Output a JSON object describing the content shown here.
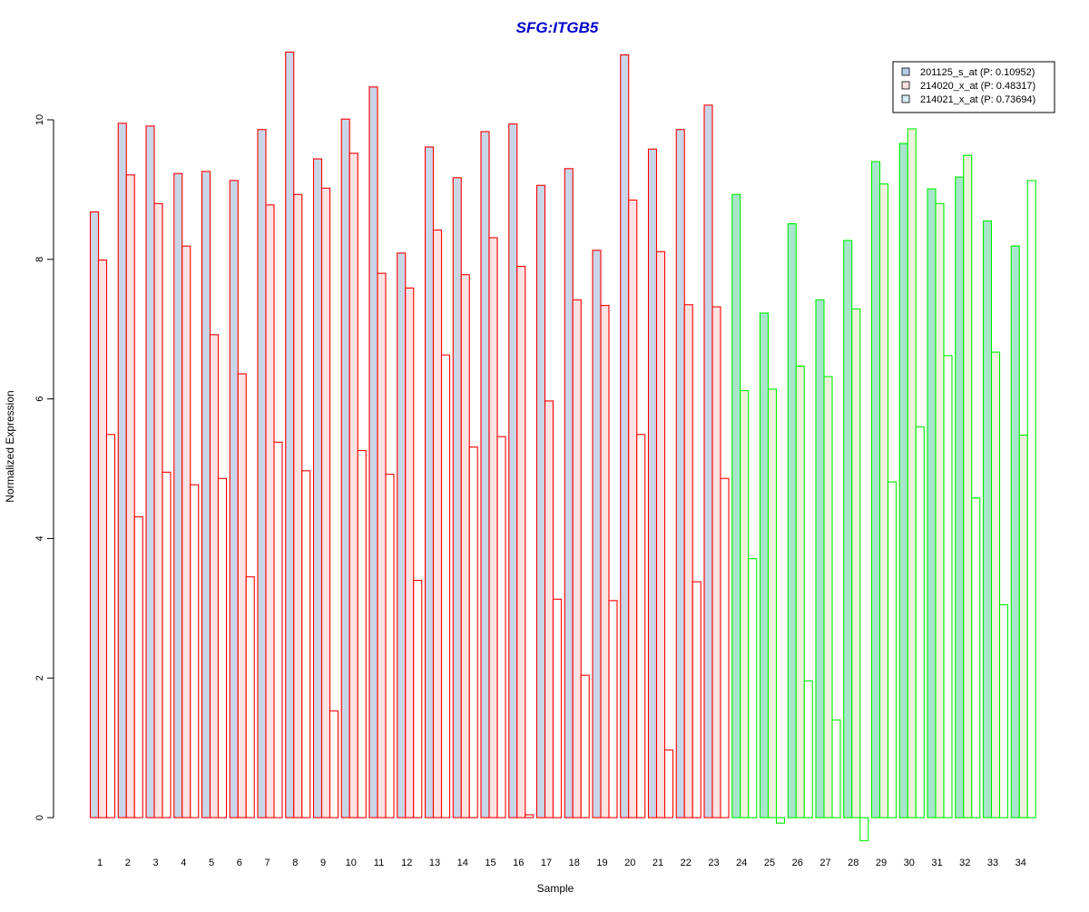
{
  "chart_data": {
    "type": "bar",
    "title": "SFG:ITGB5",
    "xlabel": "Sample",
    "ylabel": "Normalized Expression",
    "ylim": [
      -0.35,
      11.1
    ],
    "y_ticks": [
      0,
      2,
      4,
      6,
      8,
      10
    ],
    "grid": false,
    "legend_position": "top-right",
    "categories": [
      "1",
      "2",
      "3",
      "4",
      "5",
      "6",
      "7",
      "8",
      "9",
      "10",
      "11",
      "12",
      "13",
      "14",
      "15",
      "16",
      "17",
      "18",
      "19",
      "20",
      "21",
      "22",
      "23",
      "24",
      "25",
      "26",
      "27",
      "28",
      "29",
      "30",
      "31",
      "32",
      "33",
      "34"
    ],
    "group_a_count": 23,
    "colors": {
      "title": "#0000cc",
      "border_group_a": "#ff0000",
      "border_group_b": "#00ee00",
      "fill_series_1_group_a": "#c9d6e8",
      "fill_series_2_group_a": "#fde3e3",
      "fill_series_3_group_a": "#ffffff",
      "fill_series_1_group_b": "#a8e6cc",
      "fill_series_2_group_b": "#eef2dc",
      "fill_series_3_group_b": "#ffffff",
      "legend_fill_1": "#b8cde6",
      "legend_fill_2": "#fde0e0",
      "legend_fill_3": "#d6ecf4"
    },
    "series": [
      {
        "name": "201125_s_at (P: 0.10952)",
        "values": [
          8.68,
          9.95,
          9.91,
          9.23,
          9.26,
          9.13,
          9.86,
          10.97,
          9.44,
          10.01,
          10.47,
          8.09,
          9.61,
          9.17,
          9.83,
          9.94,
          9.06,
          9.3,
          8.13,
          10.93,
          9.58,
          9.86,
          10.21,
          8.93,
          7.23,
          8.51,
          7.42,
          8.27,
          9.4,
          9.66,
          9.01,
          9.18,
          8.55,
          8.19
        ]
      },
      {
        "name": "214020_x_at (P: 0.48317)",
        "values": [
          7.99,
          9.21,
          8.8,
          8.19,
          6.92,
          6.36,
          8.78,
          8.93,
          9.02,
          9.52,
          7.8,
          7.59,
          8.42,
          7.78,
          8.31,
          7.9,
          5.97,
          7.42,
          7.34,
          8.85,
          8.11,
          7.35,
          7.32,
          6.12,
          6.14,
          6.47,
          6.32,
          7.29,
          9.08,
          9.87,
          8.8,
          9.49,
          6.67,
          5.48
        ]
      },
      {
        "name": "214021_x_at (P: 0.73694)",
        "values": [
          5.49,
          4.31,
          4.95,
          4.77,
          4.86,
          3.45,
          5.38,
          4.97,
          1.53,
          5.26,
          4.92,
          3.4,
          6.63,
          5.31,
          5.46,
          0.04,
          3.13,
          2.04,
          3.11,
          5.49,
          0.97,
          3.38,
          4.86,
          3.71,
          -0.08,
          1.96,
          1.4,
          -0.33,
          4.81,
          5.6,
          6.62,
          4.58,
          3.05,
          9.13
        ]
      }
    ]
  }
}
